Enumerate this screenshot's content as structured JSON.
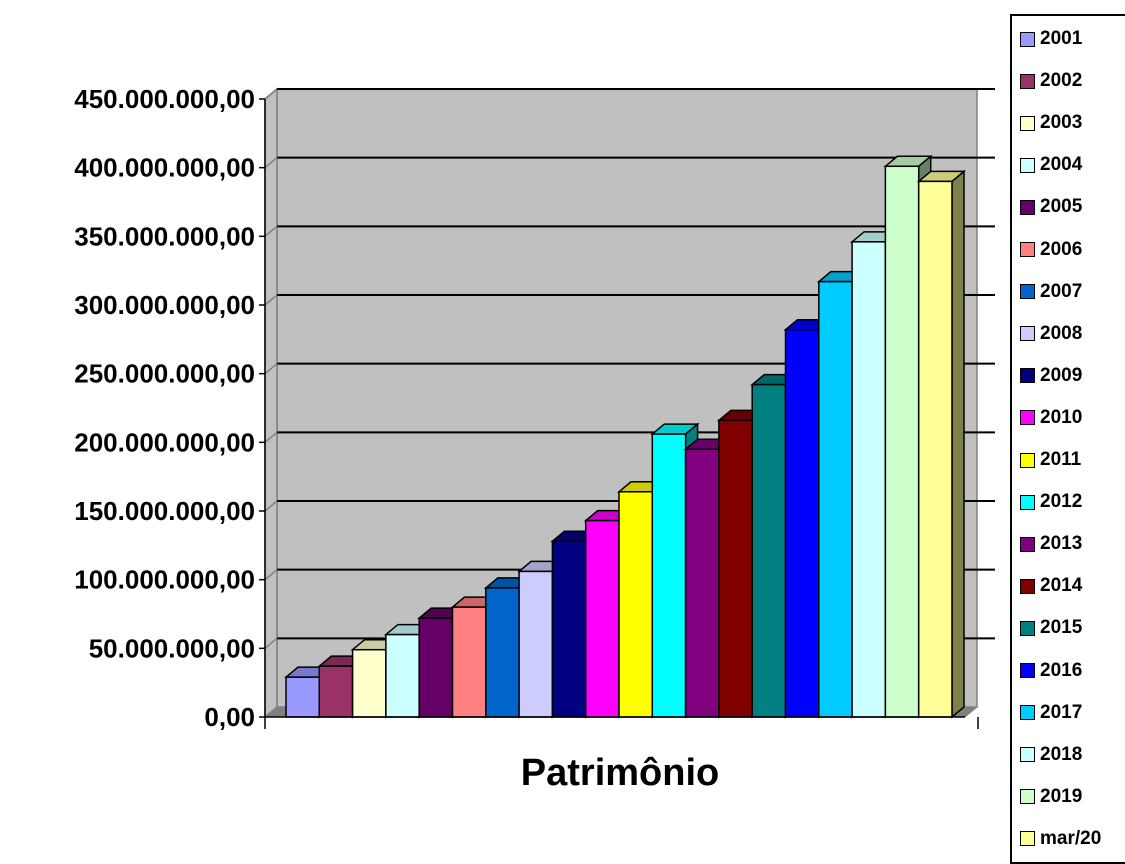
{
  "chart_data": {
    "type": "bar",
    "title": "",
    "xlabel": "Patrimônio",
    "ylabel": "",
    "ylim": [
      0,
      450000000
    ],
    "y_ticks": [
      "0,00",
      "50.000.000,00",
      "100.000.000,00",
      "150.000.000,00",
      "200.000.000,00",
      "250.000.000,00",
      "300.000.000,00",
      "350.000.000,00",
      "400.000.000,00",
      "450.000.000,00"
    ],
    "y_tick_values": [
      0,
      50000000,
      100000000,
      150000000,
      200000000,
      250000000,
      300000000,
      350000000,
      400000000,
      450000000
    ],
    "categories": [
      "Patrimônio"
    ],
    "series": [
      {
        "name": "2001",
        "value": 29000000,
        "color": "#9999FF"
      },
      {
        "name": "2002",
        "value": 37000000,
        "color": "#993366"
      },
      {
        "name": "2003",
        "value": 49000000,
        "color": "#FFFFCC"
      },
      {
        "name": "2004",
        "value": 60000000,
        "color": "#CCFFFF"
      },
      {
        "name": "2005",
        "value": 72000000,
        "color": "#660066"
      },
      {
        "name": "2006",
        "value": 80000000,
        "color": "#FF8080"
      },
      {
        "name": "2007",
        "value": 94000000,
        "color": "#0066CC"
      },
      {
        "name": "2008",
        "value": 106000000,
        "color": "#CCCCFF"
      },
      {
        "name": "2009",
        "value": 128000000,
        "color": "#000080"
      },
      {
        "name": "2010",
        "value": 143000000,
        "color": "#FF00FF"
      },
      {
        "name": "2011",
        "value": 164000000,
        "color": "#FFFF00"
      },
      {
        "name": "2012",
        "value": 206000000,
        "color": "#00FFFF"
      },
      {
        "name": "2013",
        "value": 195000000,
        "color": "#800080"
      },
      {
        "name": "2014",
        "value": 216000000,
        "color": "#800000"
      },
      {
        "name": "2015",
        "value": 242000000,
        "color": "#008080"
      },
      {
        "name": "2016",
        "value": 282000000,
        "color": "#0000FF"
      },
      {
        "name": "2017",
        "value": 317000000,
        "color": "#00CCFF"
      },
      {
        "name": "2018",
        "value": 346000000,
        "color": "#CCFFFF"
      },
      {
        "name": "2019",
        "value": 401000000,
        "color": "#CCFFCC"
      },
      {
        "name": "mar/20",
        "value": 390000000,
        "color": "#FFFF99"
      }
    ],
    "grid": true,
    "legend": "right",
    "colors": {
      "wall": "#C0C0C0",
      "floor": "#808080",
      "axis": "#808080",
      "gridline": "#000000"
    }
  }
}
